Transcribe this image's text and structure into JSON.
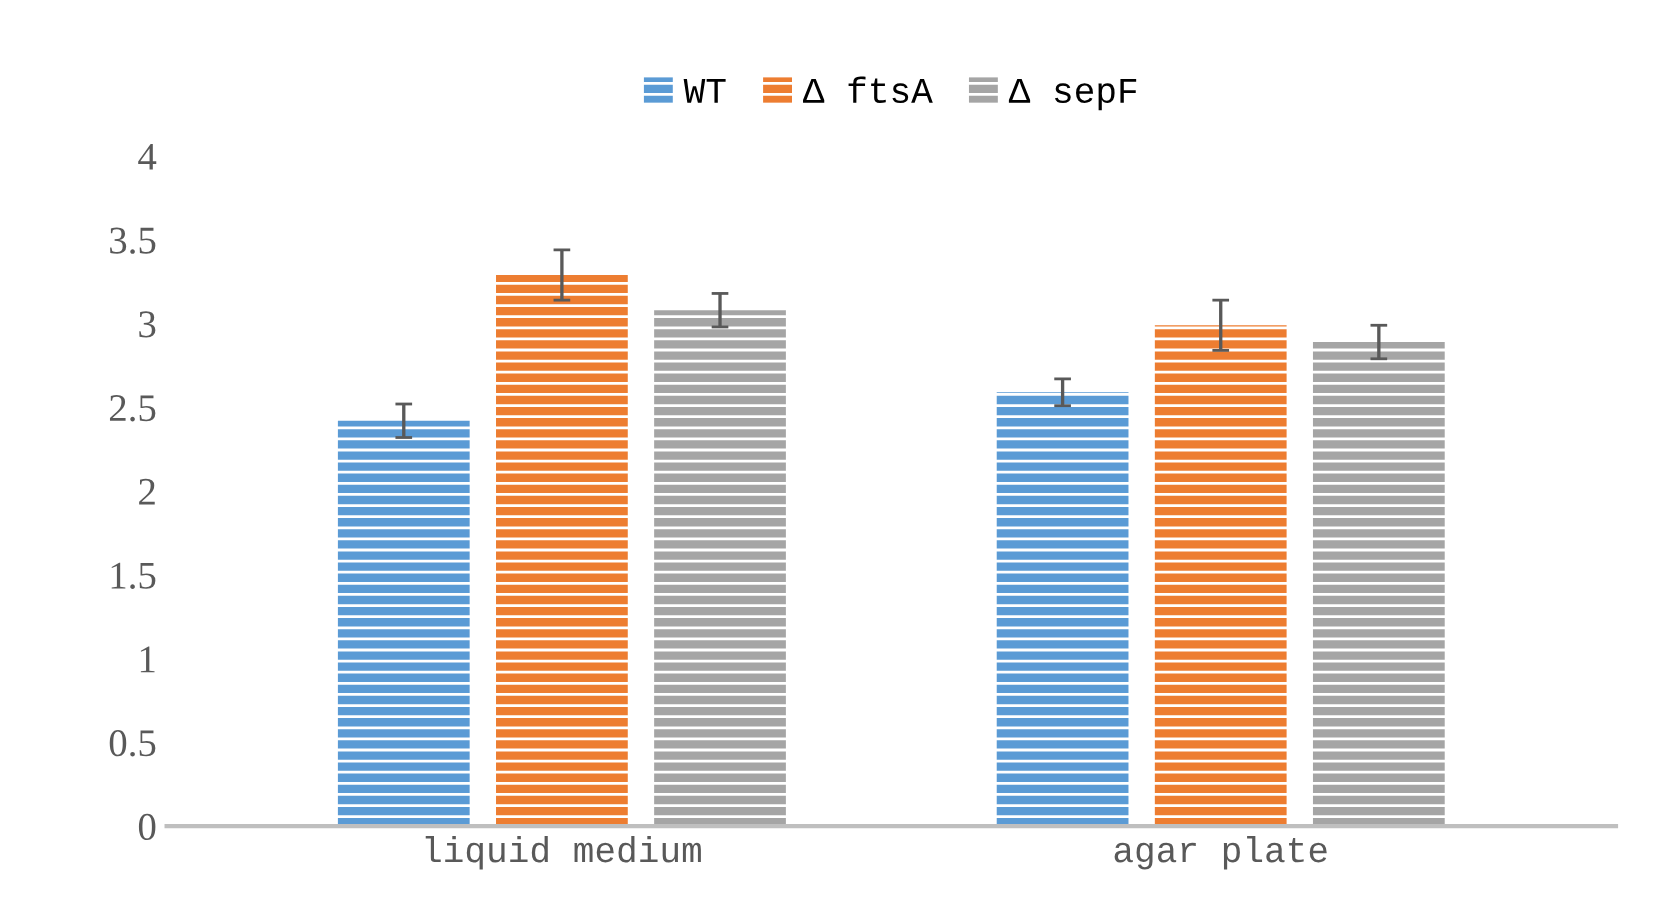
{
  "chart_data": {
    "type": "bar",
    "categories": [
      "liquid medium",
      "agar plate"
    ],
    "series": [
      {
        "name": "WT",
        "color": "#5b9bd5",
        "values": [
          2.42,
          2.59
        ],
        "errors": [
          0.1,
          0.08
        ]
      },
      {
        "name": "Δ ftsA",
        "color": "#ed7d31",
        "values": [
          3.29,
          2.99
        ],
        "errors": [
          0.15,
          0.15
        ]
      },
      {
        "name": "Δ sepF",
        "color": "#a5a5a5",
        "values": [
          3.08,
          2.89
        ],
        "errors": [
          0.1,
          0.1
        ]
      }
    ],
    "ylim": [
      0,
      4
    ],
    "yticks": [
      0,
      0.5,
      1,
      1.5,
      2,
      2.5,
      3,
      3.5,
      4
    ],
    "grid": false,
    "legend": "top"
  }
}
